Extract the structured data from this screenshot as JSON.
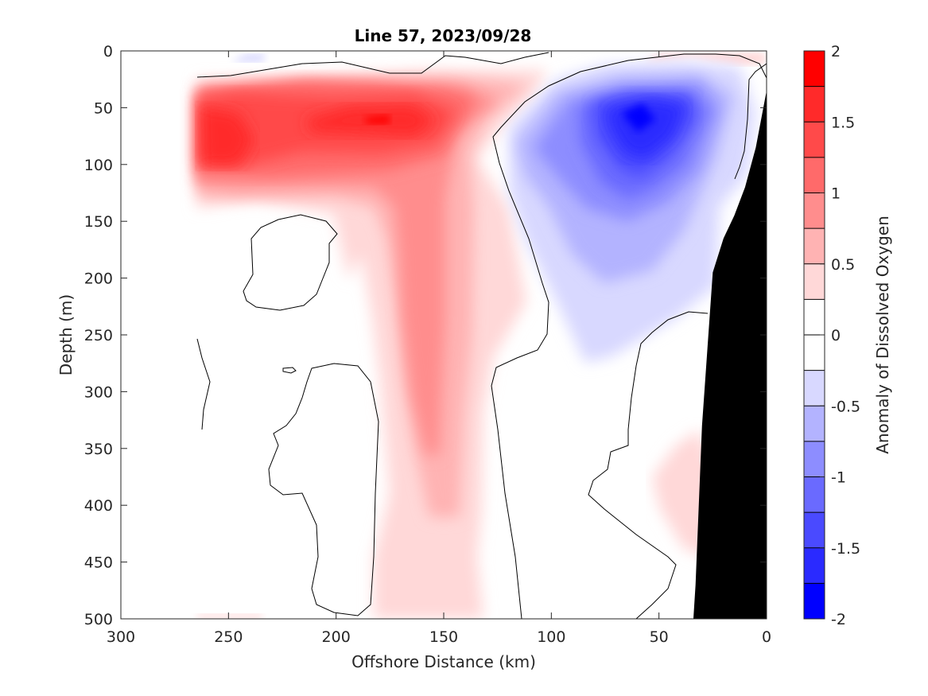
{
  "chart_data": {
    "type": "heatmap",
    "title": "Line 57, 2023/09/28",
    "xlabel": "Offshore Distance (km)",
    "ylabel": "Depth (m)",
    "xlim": [
      300,
      0
    ],
    "ylim": [
      0,
      500
    ],
    "x_reversed": true,
    "y_reversed": true,
    "x_ticks": [
      300,
      250,
      200,
      150,
      100,
      50,
      0
    ],
    "y_ticks": [
      0,
      50,
      100,
      150,
      200,
      250,
      300,
      350,
      400,
      450,
      500
    ],
    "colorbar": {
      "label": "Anomaly of Dissolved Oxygen",
      "range": [
        -2,
        2
      ],
      "tick_values": [
        2,
        1.5,
        1,
        0.5,
        0,
        -0.5,
        -1,
        -1.5,
        -2
      ],
      "tick_labels": [
        "2",
        "1.5",
        "1",
        "0.5",
        "0",
        "-0.5",
        "-1",
        "-1.5",
        "-2"
      ],
      "levels": [
        {
          "lo": 1.75,
          "hi": 2.0,
          "color": "#ff0000"
        },
        {
          "lo": 1.5,
          "hi": 1.75,
          "color": "#ff2a2a"
        },
        {
          "lo": 1.25,
          "hi": 1.5,
          "color": "#ff4a4a"
        },
        {
          "lo": 1.0,
          "hi": 1.25,
          "color": "#ff6a6a"
        },
        {
          "lo": 0.75,
          "hi": 1.0,
          "color": "#ff8d8d"
        },
        {
          "lo": 0.5,
          "hi": 0.75,
          "color": "#ffb3b3"
        },
        {
          "lo": 0.25,
          "hi": 0.5,
          "color": "#ffd8d8"
        },
        {
          "lo": 0.0,
          "hi": 0.25,
          "color": "#ffffff"
        },
        {
          "lo": -0.25,
          "hi": 0.0,
          "color": "#ffffff"
        },
        {
          "lo": -0.5,
          "hi": -0.25,
          "color": "#d8d8ff"
        },
        {
          "lo": -0.75,
          "hi": -0.5,
          "color": "#b3b3ff"
        },
        {
          "lo": -1.0,
          "hi": -0.75,
          "color": "#8d8dff"
        },
        {
          "lo": -1.25,
          "hi": -1.0,
          "color": "#6a6aff"
        },
        {
          "lo": -1.5,
          "hi": -1.25,
          "color": "#4a4aff"
        },
        {
          "lo": -1.75,
          "hi": -1.5,
          "color": "#2a2aff"
        },
        {
          "lo": -2.0,
          "hi": -1.75,
          "color": "#0000ff"
        }
      ]
    },
    "features": [
      {
        "name": "positive anomaly, upper layer",
        "x_range": [
          265,
          130
        ],
        "depth_range": [
          25,
          130
        ],
        "peak": 1.8,
        "peak_at": [
          258,
          75
        ]
      },
      {
        "name": "positive anomaly, secondary core",
        "x_range": [
          215,
          140
        ],
        "depth_range": [
          40,
          100
        ],
        "peak": 1.75,
        "peak_at": [
          172,
          60
        ]
      },
      {
        "name": "positive anomaly, vertical tongue",
        "x_range": [
          175,
          125
        ],
        "depth_range": [
          130,
          500
        ],
        "peak": 1.0,
        "peak_at": [
          155,
          250
        ]
      },
      {
        "name": "negative anomaly, shelf-break core",
        "x_range": [
          120,
          10
        ],
        "depth_range": [
          15,
          275
        ],
        "peak": -1.8,
        "peak_at": [
          60,
          57
        ]
      }
    ],
    "bathymetry": {
      "color": "#000000",
      "x": [
        0,
        5,
        10,
        15,
        20,
        25,
        30,
        33,
        34
      ],
      "depth": [
        35,
        85,
        120,
        145,
        165,
        195,
        330,
        470,
        500
      ]
    }
  }
}
